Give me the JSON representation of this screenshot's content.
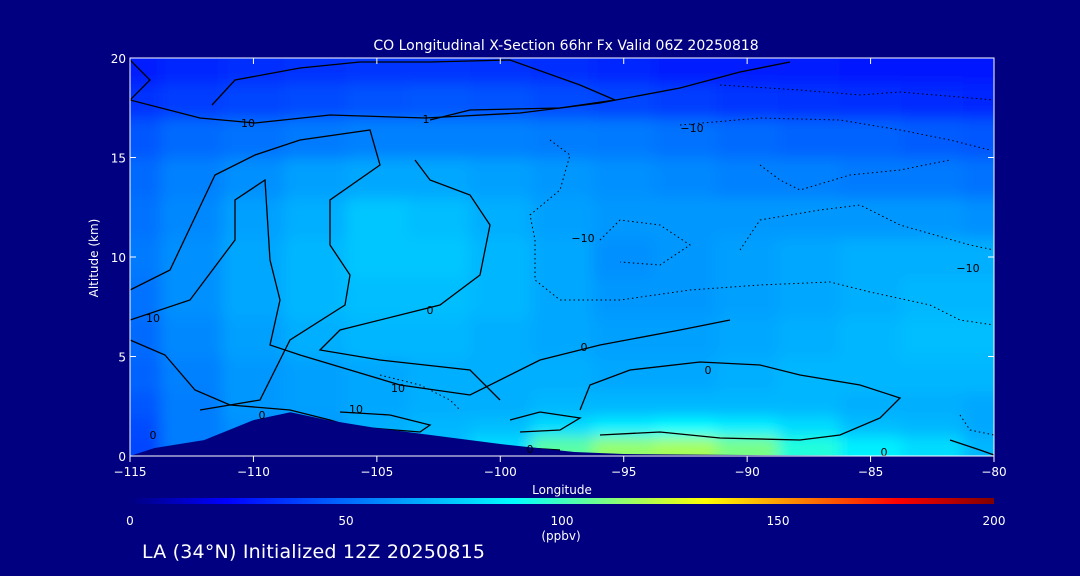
{
  "chart_data": {
    "type": "heatmap",
    "title": "CO Longitudinal X-Section 66hr  Fx Valid 06Z 20250818",
    "xlabel": "Longitude",
    "ylabel": "Altitude (km)",
    "xlim": [
      -115,
      -80
    ],
    "ylim": [
      0,
      20
    ],
    "x_ticks": [
      -115,
      -110,
      -105,
      -100,
      -95,
      -90,
      -85,
      -80
    ],
    "x_tick_labels": [
      "−115",
      "−110",
      "−105",
      "−100",
      "−95",
      "−90",
      "−85",
      "−80"
    ],
    "y_ticks": [
      0,
      5,
      10,
      15,
      20
    ],
    "y_tick_labels": [
      "0",
      "5",
      "10",
      "15",
      "20"
    ],
    "colorbar": {
      "label": "(ppbv)",
      "min": 0,
      "max": 200,
      "ticks": [
        0,
        50,
        100,
        150,
        200
      ],
      "tick_labels": [
        "0",
        "50",
        "100",
        "150",
        "200"
      ],
      "colors": [
        "#000080",
        "#0000ff",
        "#0055ff",
        "#00aaff",
        "#00ffff",
        "#7fff7f",
        "#ffff00",
        "#ff8000",
        "#ff0000",
        "#800000"
      ]
    },
    "x": [
      -115,
      -112.5,
      -110,
      -107.5,
      -105,
      -102.5,
      -100,
      -97.5,
      -95,
      -92.5,
      -90,
      -87.5,
      -85,
      -82.5,
      -80
    ],
    "y": [
      0.5,
      1.5,
      2.5,
      4,
      6,
      8,
      10,
      12,
      14,
      16,
      18,
      19.5
    ],
    "z": [
      [
        40,
        55,
        60,
        62,
        70,
        72,
        80,
        105,
        115,
        118,
        110,
        95,
        85,
        80,
        70
      ],
      [
        42,
        55,
        60,
        62,
        68,
        70,
        72,
        80,
        85,
        88,
        85,
        80,
        72,
        70,
        66
      ],
      [
        45,
        55,
        62,
        64,
        66,
        68,
        68,
        70,
        70,
        70,
        70,
        70,
        68,
        68,
        66
      ],
      [
        48,
        56,
        62,
        64,
        66,
        68,
        68,
        68,
        66,
        66,
        68,
        70,
        70,
        70,
        70
      ],
      [
        50,
        58,
        64,
        68,
        70,
        70,
        68,
        66,
        64,
        64,
        66,
        68,
        70,
        72,
        72
      ],
      [
        52,
        60,
        66,
        70,
        72,
        72,
        70,
        66,
        62,
        62,
        64,
        66,
        68,
        70,
        70
      ],
      [
        54,
        60,
        66,
        70,
        74,
        74,
        70,
        66,
        60,
        62,
        64,
        66,
        68,
        68,
        68
      ],
      [
        52,
        58,
        64,
        68,
        74,
        72,
        68,
        64,
        62,
        62,
        62,
        62,
        62,
        62,
        60
      ],
      [
        50,
        56,
        60,
        64,
        66,
        66,
        64,
        62,
        60,
        58,
        56,
        56,
        54,
        54,
        52
      ],
      [
        45,
        50,
        52,
        54,
        56,
        56,
        56,
        55,
        54,
        52,
        50,
        48,
        48,
        46,
        45
      ],
      [
        35,
        38,
        40,
        42,
        44,
        45,
        44,
        42,
        40,
        38,
        36,
        35,
        34,
        33,
        32
      ],
      [
        30,
        32,
        34,
        35,
        36,
        36,
        35,
        34,
        32,
        30,
        30,
        29,
        28,
        28,
        28
      ]
    ],
    "contour_labels": [
      "10",
      "0",
      "10",
      "−10",
      "−10",
      "−10",
      "10",
      "0",
      "0",
      "0",
      "0",
      "0",
      "1",
      "0",
      "10"
    ],
    "terrain": [
      [
        -115,
        0
      ],
      [
        -114,
        0.4
      ],
      [
        -112,
        0.8
      ],
      [
        -110,
        1.8
      ],
      [
        -108.5,
        2.2
      ],
      [
        -107,
        1.8
      ],
      [
        -105,
        1.4
      ],
      [
        -100,
        0.6
      ],
      [
        -97,
        0.2
      ],
      [
        -95,
        0.1
      ],
      [
        -90,
        0.05
      ],
      [
        -80,
        0
      ]
    ],
    "footer": "LA (34°N) Initialized 12Z 20250815"
  }
}
